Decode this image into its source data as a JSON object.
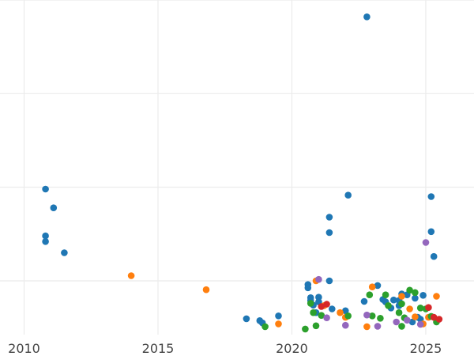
{
  "chart_data": {
    "type": "scatter",
    "title": "",
    "xlabel": "",
    "ylabel": "",
    "xlim": [
      2009.1,
      2026.8
    ],
    "ylim": [
      -1.5,
      70
    ],
    "x_ticks": [
      2010,
      2015,
      2020,
      2025
    ],
    "x_tick_labels": [
      "2010",
      "2015",
      "2020",
      "2025"
    ],
    "y_gridlines": [
      10,
      30,
      50,
      70
    ],
    "y_tick_labels_visible": false,
    "grid": true,
    "legend": "none",
    "colors": {
      "blue": "#1f77b4",
      "orange": "#ff7f0e",
      "green": "#2ca02c",
      "red": "#d62728",
      "purple": "#9467bd",
      "grid": "#ebebeb",
      "tick_text": "#444444"
    },
    "series": [
      {
        "color_key": "blue",
        "points": [
          [
            2010.8,
            29.6
          ],
          [
            2011.1,
            25.6
          ],
          [
            2010.8,
            19.6
          ],
          [
            2010.8,
            18.4
          ],
          [
            2011.5,
            16.0
          ],
          [
            2018.3,
            1.9
          ],
          [
            2018.8,
            1.5
          ],
          [
            2018.9,
            1.0
          ],
          [
            2019.5,
            2.5
          ],
          [
            2020.6,
            9.2
          ],
          [
            2020.6,
            8.5
          ],
          [
            2020.7,
            6.4
          ],
          [
            2020.7,
            5.8
          ],
          [
            2020.8,
            4.8
          ],
          [
            2020.9,
            3.2
          ],
          [
            2021.0,
            6.5
          ],
          [
            2021.0,
            5.5
          ],
          [
            2021.4,
            10.0
          ],
          [
            2021.5,
            4.0
          ],
          [
            2021.4,
            23.6
          ],
          [
            2021.4,
            20.3
          ],
          [
            2022.0,
            3.6
          ],
          [
            2022.1,
            28.3
          ],
          [
            2022.8,
            66.4
          ],
          [
            2022.7,
            5.6
          ],
          [
            2023.2,
            9.0
          ],
          [
            2023.4,
            6.0
          ],
          [
            2023.5,
            5.5
          ],
          [
            2023.7,
            4.2
          ],
          [
            2023.8,
            5.9
          ],
          [
            2024.0,
            4.7
          ],
          [
            2024.0,
            5.8
          ],
          [
            2024.1,
            7.2
          ],
          [
            2024.3,
            7.0
          ],
          [
            2024.6,
            6.3
          ],
          [
            2024.8,
            1.8
          ],
          [
            2024.9,
            6.9
          ],
          [
            2025.2,
            28.0
          ],
          [
            2025.2,
            20.5
          ],
          [
            2025.3,
            15.2
          ],
          [
            2024.5,
            1.2
          ],
          [
            2024.7,
            2.2
          ]
        ]
      },
      {
        "color_key": "orange",
        "points": [
          [
            2014.0,
            11.1
          ],
          [
            2016.8,
            8.1
          ],
          [
            2019.5,
            0.8
          ],
          [
            2020.9,
            10.0
          ],
          [
            2021.2,
            4.7
          ],
          [
            2021.8,
            3.2
          ],
          [
            2022.0,
            2.2
          ],
          [
            2022.8,
            0.2
          ],
          [
            2023.0,
            8.7
          ],
          [
            2024.1,
            6.7
          ],
          [
            2024.4,
            4.0
          ],
          [
            2024.6,
            2.3
          ],
          [
            2024.9,
            0.8
          ],
          [
            2025.1,
            2.2
          ],
          [
            2025.4,
            6.7
          ]
        ]
      },
      {
        "color_key": "green",
        "points": [
          [
            2019.0,
            0.2
          ],
          [
            2020.5,
            -0.3
          ],
          [
            2020.7,
            5.2
          ],
          [
            2020.8,
            3.2
          ],
          [
            2020.9,
            0.4
          ],
          [
            2021.1,
            2.6
          ],
          [
            2022.1,
            2.5
          ],
          [
            2022.9,
            7.0
          ],
          [
            2023.0,
            2.5
          ],
          [
            2023.3,
            2.0
          ],
          [
            2023.5,
            7.0
          ],
          [
            2023.6,
            4.7
          ],
          [
            2024.0,
            3.2
          ],
          [
            2024.1,
            5.1
          ],
          [
            2024.2,
            2.1
          ],
          [
            2024.4,
            8.0
          ],
          [
            2024.6,
            7.5
          ],
          [
            2024.8,
            4.2
          ],
          [
            2025.0,
            4.0
          ],
          [
            2025.2,
            2.4
          ],
          [
            2025.4,
            1.2
          ],
          [
            2024.1,
            0.3
          ]
        ]
      },
      {
        "color_key": "red",
        "points": [
          [
            2021.1,
            4.5
          ],
          [
            2021.3,
            5.0
          ],
          [
            2025.1,
            4.3
          ],
          [
            2025.3,
            2.2
          ],
          [
            2025.5,
            1.8
          ]
        ]
      },
      {
        "color_key": "purple",
        "points": [
          [
            2021.0,
            10.3
          ],
          [
            2021.3,
            2.1
          ],
          [
            2022.0,
            0.5
          ],
          [
            2022.8,
            2.7
          ],
          [
            2023.2,
            0.3
          ],
          [
            2023.9,
            1.2
          ],
          [
            2024.3,
            1.6
          ],
          [
            2025.0,
            18.2
          ],
          [
            2024.8,
            0.7
          ]
        ]
      }
    ]
  }
}
